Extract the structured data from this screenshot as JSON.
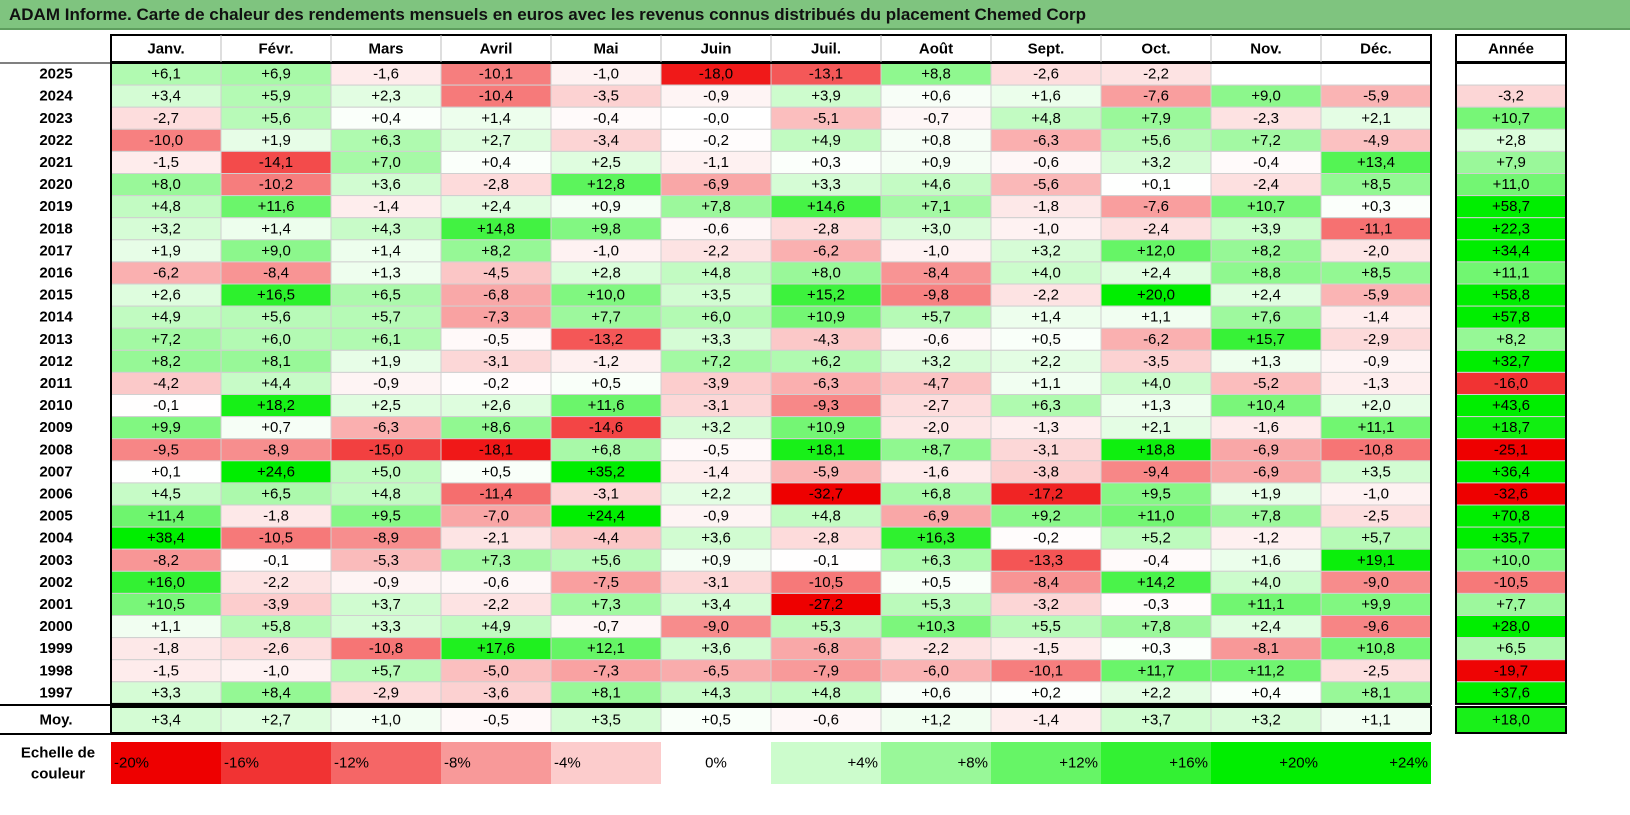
{
  "title": "ADAM Informe. Carte de chaleur des rendements mensuels en euros avec les revenus connus distribués du placement Chemed Corp",
  "colors": {
    "header_bg": "#7fc47f",
    "positive": "#00ee00",
    "negative": "#ee0000",
    "neutral": "#ffffff"
  },
  "chart_data": {
    "type": "heatmap",
    "title": "ADAM Informe. Carte de chaleur des rendements mensuels en euros avec les revenus connus distribués du placement Chemed Corp",
    "columns": [
      "Janv.",
      "Févr.",
      "Mars",
      "Avril",
      "Mai",
      "Juin",
      "Juil.",
      "Août",
      "Sept.",
      "Oct.",
      "Nov.",
      "Déc."
    ],
    "year_column_label": "Année",
    "rows": [
      {
        "year": "2025",
        "values": [
          6.1,
          6.9,
          -1.6,
          -10.1,
          -1.0,
          -18.0,
          -13.1,
          8.8,
          -2.6,
          -2.2,
          null,
          null
        ],
        "annual": null
      },
      {
        "year": "2024",
        "values": [
          3.4,
          5.9,
          2.3,
          -10.4,
          -3.5,
          -0.9,
          3.9,
          0.6,
          1.6,
          -7.6,
          9.0,
          -5.9
        ],
        "annual": -3.2
      },
      {
        "year": "2023",
        "values": [
          -2.7,
          5.6,
          0.4,
          1.4,
          -0.4,
          -0.0,
          -5.1,
          -0.7,
          4.8,
          7.9,
          -2.3,
          2.1
        ],
        "annual": 10.7
      },
      {
        "year": "2022",
        "values": [
          -10.0,
          1.9,
          6.3,
          2.7,
          -3.4,
          -0.2,
          4.9,
          0.8,
          -6.3,
          5.6,
          7.2,
          -4.9
        ],
        "annual": 2.8
      },
      {
        "year": "2021",
        "values": [
          -1.5,
          -14.1,
          7.0,
          0.4,
          2.5,
          -1.1,
          0.3,
          0.9,
          -0.6,
          3.2,
          -0.4,
          13.4
        ],
        "annual": 7.9
      },
      {
        "year": "2020",
        "values": [
          8.0,
          -10.2,
          3.6,
          -2.8,
          12.8,
          -6.9,
          3.3,
          4.6,
          -5.6,
          0.1,
          -2.4,
          8.5
        ],
        "annual": 11.0
      },
      {
        "year": "2019",
        "values": [
          4.8,
          11.6,
          -1.4,
          2.4,
          0.9,
          7.8,
          14.6,
          7.1,
          -1.8,
          -7.6,
          10.7,
          0.3
        ],
        "annual": 58.7
      },
      {
        "year": "2018",
        "values": [
          3.2,
          1.4,
          4.3,
          14.8,
          9.8,
          -0.6,
          -2.8,
          3.0,
          -1.0,
          -2.4,
          3.9,
          -11.1
        ],
        "annual": 22.3
      },
      {
        "year": "2017",
        "values": [
          1.9,
          9.0,
          1.4,
          8.2,
          -1.0,
          -2.2,
          -6.2,
          -1.0,
          3.2,
          12.0,
          8.2,
          -2.0
        ],
        "annual": 34.4
      },
      {
        "year": "2016",
        "values": [
          -6.2,
          -8.4,
          1.3,
          -4.5,
          2.8,
          4.8,
          8.0,
          -8.4,
          4.0,
          2.4,
          8.8,
          8.5
        ],
        "annual": 11.1
      },
      {
        "year": "2015",
        "values": [
          2.6,
          16.5,
          6.5,
          -6.8,
          10.0,
          3.5,
          15.2,
          -9.8,
          -2.2,
          20.0,
          2.4,
          -5.9
        ],
        "annual": 58.8
      },
      {
        "year": "2014",
        "values": [
          4.9,
          5.6,
          5.7,
          -7.3,
          7.7,
          6.0,
          10.9,
          5.7,
          1.4,
          1.1,
          7.6,
          -1.4
        ],
        "annual": 57.8
      },
      {
        "year": "2013",
        "values": [
          7.2,
          6.0,
          6.1,
          -0.5,
          -13.2,
          3.3,
          -4.3,
          -0.6,
          0.5,
          -6.2,
          15.7,
          -2.9
        ],
        "annual": 8.2
      },
      {
        "year": "2012",
        "values": [
          8.2,
          8.1,
          1.9,
          -3.1,
          -1.2,
          7.2,
          6.2,
          3.2,
          2.2,
          -3.5,
          1.3,
          -0.9
        ],
        "annual": 32.7
      },
      {
        "year": "2011",
        "values": [
          -4.2,
          4.4,
          -0.9,
          -0.2,
          0.5,
          -3.9,
          -6.3,
          -4.7,
          1.1,
          4.0,
          -5.2,
          -1.3
        ],
        "annual": -16.0
      },
      {
        "year": "2010",
        "values": [
          -0.1,
          18.2,
          2.5,
          2.6,
          11.6,
          -3.1,
          -9.3,
          -2.7,
          6.3,
          1.3,
          10.4,
          2.0
        ],
        "annual": 43.6
      },
      {
        "year": "2009",
        "values": [
          9.9,
          0.7,
          -6.3,
          8.6,
          -14.6,
          3.2,
          10.9,
          -2.0,
          -1.3,
          2.1,
          -1.6,
          11.1
        ],
        "annual": 18.7
      },
      {
        "year": "2008",
        "values": [
          -9.5,
          -8.9,
          -15.0,
          -18.1,
          6.8,
          -0.5,
          18.1,
          8.7,
          -3.1,
          18.8,
          -6.9,
          -10.8
        ],
        "annual": -25.1
      },
      {
        "year": "2007",
        "values": [
          0.1,
          24.6,
          5.0,
          0.5,
          35.2,
          -1.4,
          -5.9,
          -1.6,
          -3.8,
          -9.4,
          -6.9,
          3.5
        ],
        "annual": 36.4
      },
      {
        "year": "2006",
        "values": [
          4.5,
          6.5,
          4.8,
          -11.4,
          -3.1,
          2.2,
          -32.7,
          6.8,
          -17.2,
          9.5,
          1.9,
          -1.0
        ],
        "annual": -32.6
      },
      {
        "year": "2005",
        "values": [
          11.4,
          -1.8,
          9.5,
          -7.0,
          24.4,
          -0.9,
          4.8,
          -6.9,
          9.2,
          11.0,
          7.8,
          -2.5
        ],
        "annual": 70.8
      },
      {
        "year": "2004",
        "values": [
          38.4,
          -10.5,
          -8.9,
          -2.1,
          -4.4,
          3.6,
          -2.8,
          16.3,
          -0.2,
          5.2,
          -1.2,
          5.7
        ],
        "annual": 35.7
      },
      {
        "year": "2003",
        "values": [
          -8.2,
          -0.1,
          -5.3,
          7.3,
          5.6,
          0.9,
          -0.1,
          6.3,
          -13.3,
          -0.4,
          1.6,
          19.1
        ],
        "annual": 10.0
      },
      {
        "year": "2002",
        "values": [
          16.0,
          -2.2,
          -0.9,
          -0.6,
          -7.5,
          -3.1,
          -10.5,
          0.5,
          -8.4,
          14.2,
          4.0,
          -9.0
        ],
        "annual": -10.5
      },
      {
        "year": "2001",
        "values": [
          10.5,
          -3.9,
          3.7,
          -2.2,
          7.3,
          3.4,
          -27.2,
          5.3,
          -3.2,
          -0.3,
          11.1,
          9.9
        ],
        "annual": 7.7
      },
      {
        "year": "2000",
        "values": [
          1.1,
          5.8,
          3.3,
          4.9,
          -0.7,
          -9.0,
          5.3,
          10.3,
          5.5,
          7.8,
          2.4,
          -9.6
        ],
        "annual": 28.0
      },
      {
        "year": "1999",
        "values": [
          -1.8,
          -2.6,
          -10.8,
          17.6,
          12.1,
          3.6,
          -6.8,
          -2.2,
          -1.5,
          0.3,
          -8.1,
          10.8
        ],
        "annual": 6.5
      },
      {
        "year": "1998",
        "values": [
          -1.5,
          -1.0,
          5.7,
          -5.0,
          -7.3,
          -6.5,
          -7.9,
          -6.0,
          -10.1,
          11.7,
          11.2,
          -2.5
        ],
        "annual": -19.7
      },
      {
        "year": "1997",
        "values": [
          3.3,
          8.4,
          -2.9,
          -3.6,
          8.1,
          4.3,
          4.8,
          0.6,
          0.2,
          2.2,
          0.4,
          8.1
        ],
        "annual": 37.6
      }
    ],
    "average": {
      "label": "Moy.",
      "values": [
        3.4,
        2.7,
        1.0,
        -0.5,
        3.5,
        0.5,
        -0.6,
        1.2,
        -1.4,
        3.7,
        3.2,
        1.1
      ],
      "annual": 18.0
    },
    "scale": {
      "label": "Echelle de couleur",
      "values": [
        -20,
        -16,
        -12,
        -8,
        -4,
        0,
        4,
        8,
        12,
        16,
        20,
        24
      ],
      "labels": [
        "-20%",
        "-16%",
        "-12%",
        "-8%",
        "-4%",
        "0%",
        "+4%",
        "+8%",
        "+12%",
        "+16%",
        "+20%",
        "+24%"
      ]
    }
  }
}
